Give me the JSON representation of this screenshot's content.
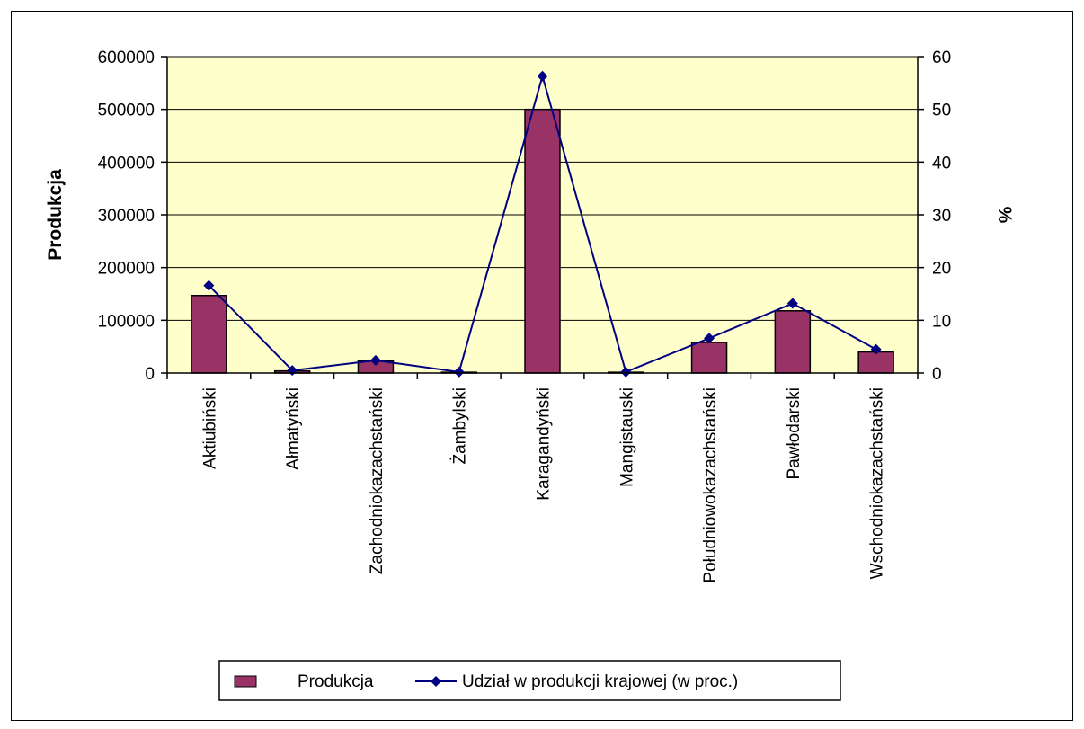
{
  "chart_data": {
    "type": "bar",
    "title": "",
    "categories": [
      "Aktiubiński",
      "Ałmatyński",
      "Zachodniokazachstański",
      "Żambylski",
      "Karagandyński",
      "Mangistauski",
      "Południowokazachstański",
      "Pawłodarski",
      "Wschodniokazachstański"
    ],
    "series": [
      {
        "name": "Produkcja",
        "type": "bar",
        "axis": "left",
        "color": "#993366",
        "values": [
          147000,
          4000,
          23000,
          1500,
          500000,
          1500,
          58000,
          118000,
          40000
        ]
      },
      {
        "name": "Udział w produkcji krajowej (w proc.)",
        "type": "line",
        "axis": "right",
        "color": "#000080",
        "marker": "diamond",
        "values": [
          16.6,
          0.5,
          2.4,
          0.2,
          56.3,
          0.2,
          6.6,
          13.2,
          4.5
        ]
      }
    ],
    "ylabel": "Produkcja",
    "y2label": "%",
    "ylim": [
      0,
      600000
    ],
    "y2lim": [
      0,
      60
    ],
    "yticks": [
      "0",
      "100000",
      "200000",
      "300000",
      "400000",
      "500000",
      "600000"
    ],
    "y2ticks": [
      "0",
      "10",
      "20",
      "30",
      "40",
      "50",
      "60"
    ],
    "grid": true,
    "plot_background": "#ffffcc",
    "legend": "bottom"
  }
}
